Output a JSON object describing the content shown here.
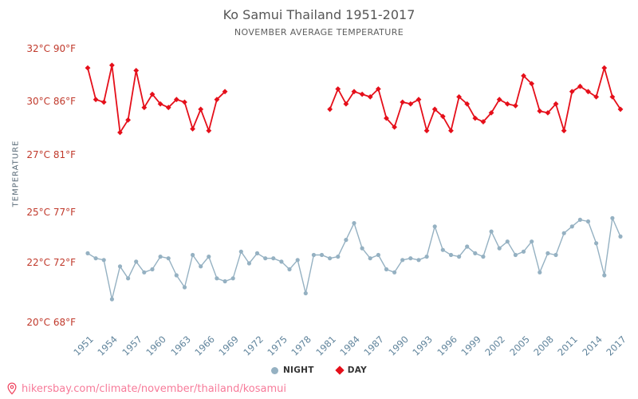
{
  "title": "Ko Samui Thailand 1951-2017",
  "subtitle": "NOVEMBER AVERAGE TEMPERATURE",
  "y_axis_label": "TEMPERATURE",
  "legend": {
    "night_label": "NIGHT",
    "day_label": "DAY"
  },
  "footer": {
    "url": "hikersbay.com/climate/november/thailand/kosamui"
  },
  "colors": {
    "day": "#e50f1a",
    "night": "#95b1c2",
    "y_tick_text": "#c0392b",
    "x_tick_text": "#60849c",
    "axis_title_text": "#5a6b78",
    "title_text": "#565656",
    "subtitle_text": "#5f5f5f",
    "legend_text": "#333333",
    "link": "#f77b9a",
    "pin": "#ef4560"
  },
  "chart_data": {
    "type": "line",
    "title": "Ko Samui Thailand 1951-2017",
    "subtitle": "NOVEMBER AVERAGE TEMPERATURE",
    "ylabel": "TEMPERATURE",
    "ylim": [
      20,
      32
    ],
    "grid": false,
    "legend_position": "bottom",
    "x_label_ticks": [
      1951,
      1954,
      1957,
      1960,
      1963,
      1966,
      1969,
      1972,
      1975,
      1978,
      1981,
      1984,
      1987,
      1990,
      1993,
      1996,
      1999,
      2002,
      2005,
      2008,
      2011,
      2014,
      2017
    ],
    "y_ticks": [
      {
        "celsius": "32°C",
        "fahrenheit": "90°F",
        "value": 32
      },
      {
        "celsius": "30°C",
        "fahrenheit": "86°F",
        "value": 30
      },
      {
        "celsius": "27°C",
        "fahrenheit": "81°F",
        "value": 27
      },
      {
        "celsius": "25°C",
        "fahrenheit": "77°F",
        "value": 25
      },
      {
        "celsius": "22°C",
        "fahrenheit": "72°F",
        "value": 22
      },
      {
        "celsius": "20°C",
        "fahrenheit": "68°F",
        "value": 20
      }
    ],
    "years": [
      1951,
      1952,
      1953,
      1954,
      1955,
      1956,
      1957,
      1958,
      1959,
      1960,
      1961,
      1962,
      1963,
      1964,
      1965,
      1966,
      1967,
      1968,
      1969,
      1970,
      1971,
      1972,
      1973,
      1974,
      1975,
      1976,
      1977,
      1978,
      1979,
      1980,
      1981,
      1982,
      1983,
      1984,
      1985,
      1986,
      1987,
      1988,
      1989,
      1990,
      1991,
      1992,
      1993,
      1994,
      1995,
      1996,
      1997,
      1998,
      1999,
      2000,
      2001,
      2002,
      2003,
      2004,
      2005,
      2006,
      2007,
      2008,
      2009,
      2010,
      2011,
      2012,
      2013,
      2014,
      2015,
      2016,
      2017
    ],
    "series": [
      {
        "name": "NIGHT",
        "key": "night",
        "values": [
          22.6,
          22.3,
          22.2,
          20.8,
          21.9,
          21.5,
          22.1,
          21.7,
          21.8,
          22.4,
          22.3,
          21.6,
          21.2,
          22.5,
          21.9,
          22.4,
          21.5,
          21.4,
          21.5,
          22.7,
          22.0,
          22.6,
          22.3,
          22.3,
          22.1,
          21.8,
          22.2,
          21.0,
          22.5,
          22.5,
          22.3,
          22.4,
          23.4,
          24.4,
          22.9,
          22.3,
          22.5,
          21.8,
          21.7,
          22.2,
          22.3,
          22.2,
          22.4,
          24.2,
          22.8,
          22.5,
          22.4,
          23.0,
          22.6,
          22.4,
          23.9,
          22.9,
          23.3,
          22.5,
          22.7,
          23.3,
          21.7,
          22.6,
          22.5,
          23.8,
          24.2,
          24.6,
          24.5,
          23.2,
          21.6,
          24.7,
          23.6
        ]
      },
      {
        "name": "DAY",
        "key": "day",
        "values": [
          31.3,
          30.1,
          30.0,
          31.4,
          28.3,
          29.0,
          31.2,
          29.7,
          30.3,
          29.9,
          29.7,
          30.1,
          30.0,
          28.5,
          29.6,
          28.4,
          30.1,
          30.4,
          null,
          null,
          null,
          null,
          null,
          null,
          null,
          null,
          null,
          null,
          null,
          null,
          29.6,
          30.5,
          29.9,
          30.4,
          30.3,
          30.2,
          30.5,
          29.1,
          28.6,
          30.0,
          29.9,
          30.1,
          28.4,
          29.6,
          29.2,
          28.4,
          30.2,
          29.9,
          29.1,
          28.9,
          29.4,
          30.1,
          29.9,
          29.8,
          31.0,
          30.7,
          29.5,
          29.4,
          29.9,
          28.4,
          30.4,
          30.6,
          30.4,
          30.2,
          31.3,
          30.2,
          29.6
        ]
      }
    ]
  }
}
